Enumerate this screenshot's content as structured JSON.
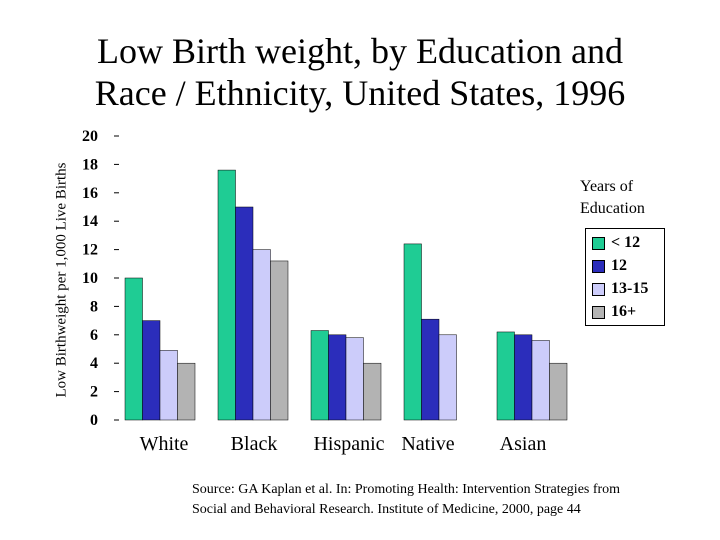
{
  "title_line_1": "Low Birth weight, by Education and",
  "title_line_2": "Race / Ethnicity, United States, 1996",
  "legend_title": "Years of\nEducation",
  "source": "Source: GA Kaplan et al.  In: Promoting Health: Intervention Strategies from\nSocial and Behavioral Research.  Institute of Medicine, 2000, page 44",
  "chart_data": {
    "type": "bar",
    "title": "Low Birth weight, by Education and Race / Ethnicity, United States, 1996",
    "ylabel": "Low Birthweight per 1,000 Live Births",
    "xlabel": "",
    "ylim": [
      0,
      20
    ],
    "yticks": [
      0,
      2,
      4,
      6,
      8,
      10,
      12,
      14,
      16,
      18,
      20
    ],
    "categories": [
      "White",
      "Black",
      "Hispanic",
      "Native",
      "Asian"
    ],
    "legend_position": "right",
    "grid": false,
    "series": [
      {
        "name": "< 12",
        "color": "#1fcc94",
        "values": [
          10.0,
          17.6,
          6.3,
          12.4,
          6.2
        ]
      },
      {
        "name": "12",
        "color": "#2b2dbb",
        "values": [
          7.0,
          15.0,
          6.0,
          7.1,
          6.0
        ]
      },
      {
        "name": "13-15",
        "color": "#ccccfa",
        "values": [
          4.9,
          12.0,
          5.8,
          6.0,
          5.6
        ]
      },
      {
        "name": "16+",
        "color": "#b3b3b3",
        "values": [
          4.0,
          11.2,
          4.0,
          null,
          4.0
        ]
      }
    ]
  }
}
